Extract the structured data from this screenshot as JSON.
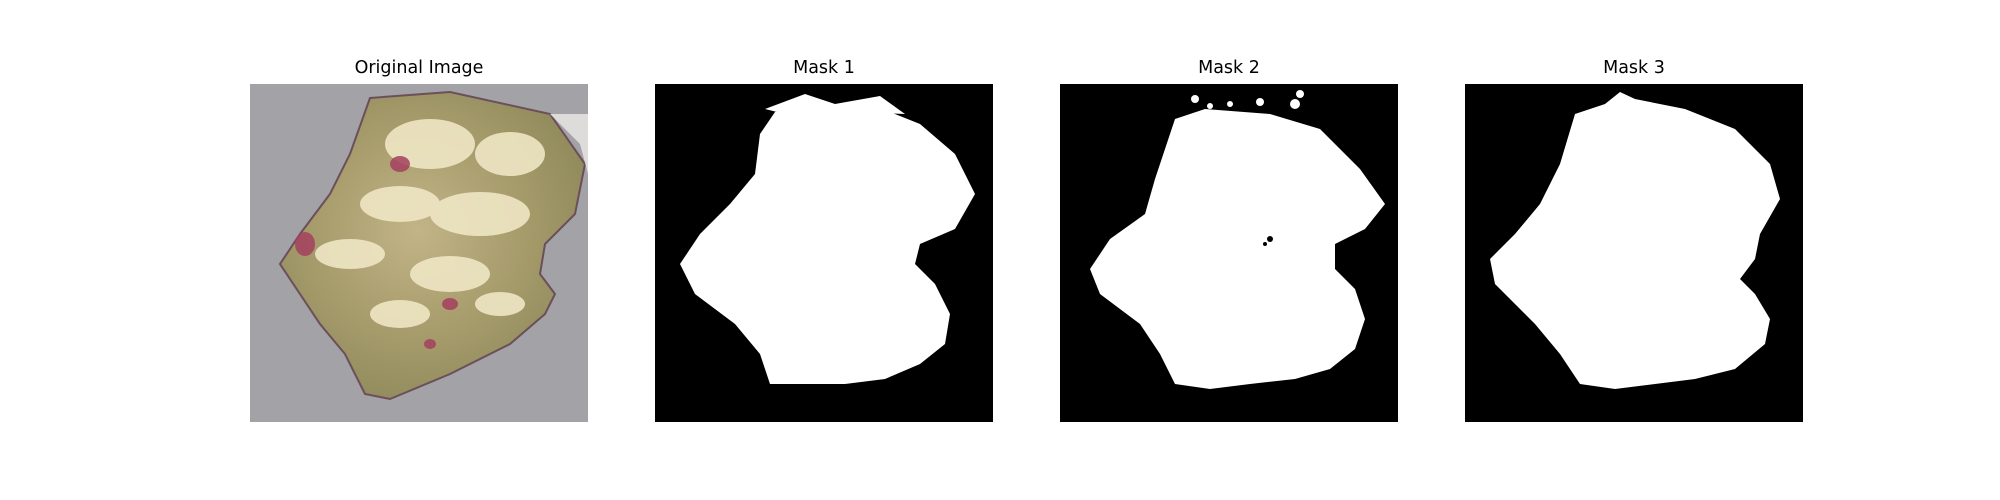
{
  "figure": {
    "panels": [
      {
        "title": "Original Image",
        "kind": "photo",
        "description_icon": "leaf-photo"
      },
      {
        "title": "Mask 1",
        "kind": "mask",
        "description_icon": "mask-image"
      },
      {
        "title": "Mask 2",
        "kind": "mask",
        "description_icon": "mask-image"
      },
      {
        "title": "Mask 3",
        "kind": "mask",
        "description_icon": "mask-image"
      }
    ],
    "colors": {
      "background": "#ffffff",
      "mask_background": "#000000",
      "mask_foreground": "#ffffff",
      "photo_background": "#a3a2a6",
      "leaf_base": "#a59a6a",
      "leaf_spots": "#efe6c4",
      "leaf_lesion": "#a4405f"
    }
  }
}
